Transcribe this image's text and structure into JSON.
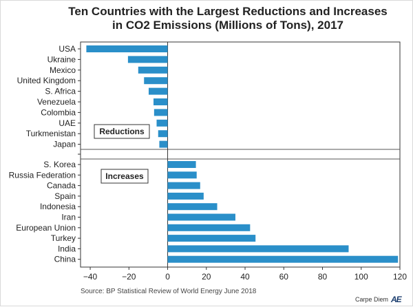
{
  "chart_data": {
    "type": "bar",
    "orientation": "horizontal",
    "title": "Ten Countries with the Largest Reductions and Increases in CO2 Emissions (Millions of Tons), 2017",
    "title_lines": [
      "Ten Countries with the Largest Reductions and Increases",
      "in CO2 Emissions (Millions of Tons), 2017"
    ],
    "xlim": [
      -45,
      120
    ],
    "xticks": [
      -40,
      -20,
      0,
      20,
      40,
      60,
      80,
      100,
      120
    ],
    "bar_color": "#2a8fc9",
    "groups": [
      {
        "name": "Reductions",
        "categories": [
          "USA",
          "Ukraine",
          "Mexico",
          "United Kingdom",
          "S. Africa",
          "Venezuela",
          "Colombia",
          "UAE",
          "Turkmenistan",
          "Japan"
        ],
        "values": [
          -42.0,
          -20.5,
          -15.2,
          -12.2,
          -9.8,
          -7.3,
          -7.0,
          -5.7,
          -4.9,
          -4.3
        ]
      },
      {
        "name": "Increases",
        "categories": [
          "S. Korea",
          "Russia Federation",
          "Canada",
          "Spain",
          "Indonesia",
          "Iran",
          "European Union",
          "Turkey",
          "India",
          "China"
        ],
        "values": [
          14.6,
          15.0,
          16.8,
          18.6,
          25.6,
          35.0,
          42.6,
          45.4,
          93.5,
          119.0
        ]
      }
    ]
  },
  "footer": {
    "source": "Source: BP Statistical Review of World Energy June 2018",
    "brand_text": "Carpe Diem",
    "brand_logo": "AE"
  }
}
